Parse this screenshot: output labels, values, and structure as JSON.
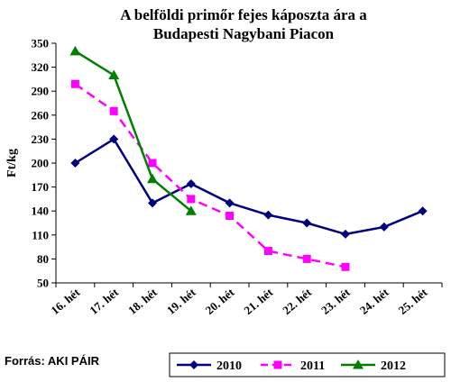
{
  "chart_data": {
    "type": "line",
    "title_lines": [
      "A belföldi primőr fejes káposzta ára a",
      "Budapesti Nagybani Piacon"
    ],
    "ylabel": "Ft/kg",
    "xlabel": "",
    "ylim": [
      50,
      350
    ],
    "yticks": [
      50,
      80,
      110,
      140,
      170,
      200,
      230,
      260,
      290,
      320,
      350
    ],
    "categories": [
      "16. hét",
      "17. hét",
      "18. hét",
      "19. hét",
      "20. hét",
      "21. hét",
      "22. hét",
      "23. hét",
      "24. hét",
      "25. hét"
    ],
    "grid": false,
    "legend_position": "bottom-right",
    "series": [
      {
        "name": "2010",
        "color": "#000080",
        "marker": "diamond",
        "dash": "solid",
        "values": [
          200,
          230,
          150,
          174,
          150,
          135,
          125,
          111,
          120,
          140
        ]
      },
      {
        "name": "2011",
        "color": "#ff00ff",
        "marker": "square",
        "dash": "dashed",
        "values": [
          299,
          265,
          200,
          155,
          134,
          90,
          80,
          70,
          null,
          null
        ]
      },
      {
        "name": "2012",
        "color": "#008000",
        "marker": "triangle",
        "dash": "solid",
        "values": [
          340,
          310,
          180,
          140,
          null,
          null,
          null,
          null,
          null,
          null
        ]
      }
    ]
  },
  "source": "Forrás: AKI PÁIR"
}
